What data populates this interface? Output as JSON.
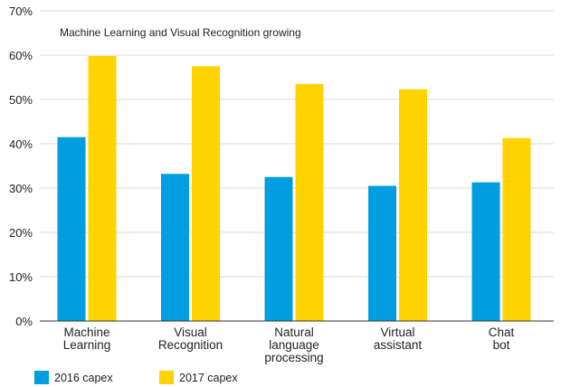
{
  "chart_data": {
    "type": "bar",
    "title": "Machine Learning and Visual Recognition growing",
    "xlabel": "",
    "ylabel": "",
    "ylim": [
      0,
      70
    ],
    "yticks": [
      0,
      10,
      20,
      30,
      40,
      50,
      60,
      70
    ],
    "ytick_labels": [
      "0%",
      "10%",
      "20%",
      "30%",
      "40%",
      "50%",
      "60%",
      "70%"
    ],
    "grid": true,
    "legend_position": "bottom-left",
    "categories": [
      [
        "Machine",
        "Learning"
      ],
      [
        "Visual",
        "Recognition"
      ],
      [
        "Natural",
        "language",
        "processing"
      ],
      [
        "Virtual",
        "assistant"
      ],
      [
        "Chat",
        "bot"
      ]
    ],
    "series": [
      {
        "name": "2016 capex",
        "color": "#009ee0",
        "values": [
          41.5,
          33.2,
          32.5,
          30.5,
          31.3
        ]
      },
      {
        "name": "2017 capex",
        "color": "#ffd200",
        "values": [
          59.8,
          57.5,
          53.5,
          52.3,
          41.3
        ]
      }
    ]
  }
}
